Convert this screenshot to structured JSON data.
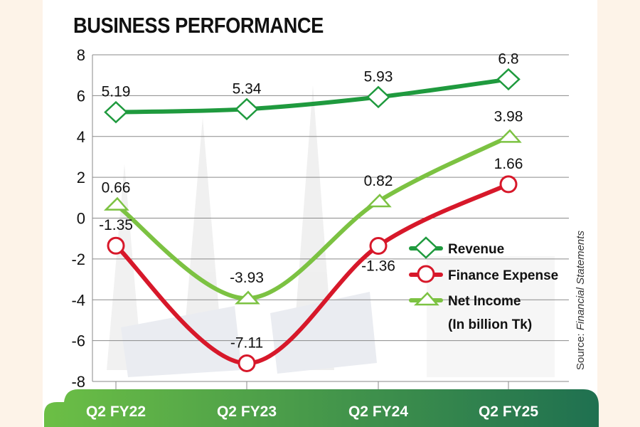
{
  "chart_data": {
    "type": "line",
    "title": "BUSINESS PERFORMANCE",
    "xlabel": "",
    "ylabel": "",
    "unit_note": "(In billion Tk)",
    "source": {
      "prefix": "Source: ",
      "text": "Financial Statements"
    },
    "categories": [
      "Q2 FY22",
      "Q2 FY23",
      "Q2 FY24",
      "Q2 FY25"
    ],
    "ylim": [
      -8,
      8
    ],
    "yticks": [
      8,
      6,
      4,
      2,
      0,
      -2,
      -4,
      -6,
      -8
    ],
    "grid": true,
    "legend_position": "center-right",
    "series": [
      {
        "name": "Revenue",
        "marker": "diamond",
        "color": "#1f9a3e",
        "values": [
          5.19,
          5.34,
          5.93,
          6.8
        ],
        "labels": [
          "5.19",
          "5.34",
          "5.93",
          "6.8"
        ]
      },
      {
        "name": "Finance Expense",
        "marker": "circle",
        "color": "#d7182a",
        "values": [
          -1.35,
          -7.11,
          -1.36,
          1.66
        ],
        "labels": [
          "-1.35",
          "-7.11",
          "-1.36",
          "1.66"
        ]
      },
      {
        "name": "Net Income",
        "marker": "triangle",
        "color": "#7cc242",
        "values": [
          0.66,
          -3.93,
          0.82,
          3.98
        ],
        "labels": [
          "0.66",
          "-3.93",
          "0.82",
          "3.98"
        ]
      }
    ]
  },
  "colors": {
    "background": "#fdf3e8",
    "panel": "#ffffff",
    "band_start": "#6cbf45",
    "band_end": "#1f7050",
    "grid": "#8a8a8a"
  }
}
